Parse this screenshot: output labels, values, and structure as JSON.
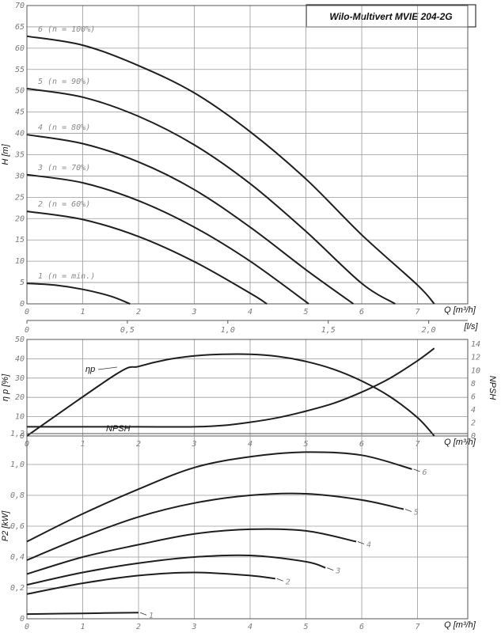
{
  "title": "Wilo-Multivert MVIE 204-2G",
  "chart_data": [
    {
      "type": "line",
      "panel": "head",
      "xlabel": "Q [m³/h]",
      "ylabel": "H [m]",
      "xlim": [
        0,
        7.9
      ],
      "ylim": [
        0,
        70
      ],
      "x_ticks": [
        "0",
        "1",
        "2",
        "3",
        "4",
        "5",
        "6",
        "7"
      ],
      "y_ticks": [
        "0",
        "5",
        "10",
        "15",
        "20",
        "25",
        "30",
        "35",
        "40",
        "45",
        "50",
        "55",
        "60",
        "65",
        "70"
      ],
      "secondary_xlabel": "[l/s]",
      "secondary_x_ticks": [
        {
          "label": "0",
          "q": 0
        },
        {
          "label": "0,5",
          "q": 1.8
        },
        {
          "label": "1,0",
          "q": 3.6
        },
        {
          "label": "1,5",
          "q": 5.4
        },
        {
          "label": "2,0",
          "q": 7.2
        }
      ],
      "series": [
        {
          "name": "6 (n = 100%)",
          "x": [
            0,
            1,
            2,
            3,
            4,
            5,
            6,
            7,
            7.3
          ],
          "y": [
            62.8,
            60.7,
            55.9,
            49.5,
            40.4,
            29.3,
            16.2,
            4.4,
            0
          ]
        },
        {
          "name": "5 (n = 90%)",
          "x": [
            0,
            1,
            2,
            3,
            4,
            5,
            6,
            6.6
          ],
          "y": [
            50.5,
            48.5,
            44.0,
            37.3,
            28.2,
            17.0,
            4.8,
            0
          ]
        },
        {
          "name": "4 (n = 80%)",
          "x": [
            0,
            1,
            2,
            3,
            4,
            5,
            5.85
          ],
          "y": [
            39.7,
            37.6,
            33.3,
            26.8,
            18.0,
            8.0,
            0
          ]
        },
        {
          "name": "3 (n = 70%)",
          "x": [
            0,
            1,
            2,
            3,
            4,
            5.05
          ],
          "y": [
            30.3,
            28.4,
            24.2,
            18.0,
            10.0,
            0
          ]
        },
        {
          "name": "2 (n = 60%)",
          "x": [
            0,
            1,
            2,
            3,
            4,
            4.3
          ],
          "y": [
            21.7,
            19.8,
            15.8,
            9.9,
            2.5,
            0
          ]
        },
        {
          "name": "1 (n = min.)",
          "x": [
            0,
            0.5,
            1,
            1.5,
            1.85
          ],
          "y": [
            4.8,
            4.4,
            3.4,
            1.8,
            0
          ]
        }
      ]
    },
    {
      "type": "line",
      "panel": "efficiency_npsh",
      "xlabel": "Q [m³/h]",
      "ylabel": "η p [%]",
      "ylabel_right": "NPSH",
      "xlim": [
        0,
        7.9
      ],
      "ylim": [
        0,
        50
      ],
      "ylim_right": [
        0,
        14.75
      ],
      "y_ticks": [
        "0",
        "10",
        "20",
        "30",
        "40",
        "50"
      ],
      "y_ticks_right": [
        "0",
        "2",
        "4",
        "6",
        "8",
        "10",
        "12",
        "14"
      ],
      "series": [
        {
          "name": "ηp",
          "axis": "left",
          "x": [
            0,
            1.6,
            2,
            2.5,
            3,
            3.5,
            4,
            4.5,
            5,
            5.5,
            6,
            6.5,
            7,
            7.3
          ],
          "y": [
            0,
            32,
            36,
            39.5,
            41.5,
            42.3,
            42.3,
            41.2,
            38.6,
            34.5,
            28.5,
            20.5,
            9.5,
            0
          ]
        },
        {
          "name": "NPSH",
          "axis": "right",
          "x": [
            0,
            1,
            2,
            3,
            3.5,
            4,
            4.5,
            5,
            5.5,
            6,
            6.5,
            7,
            7.3
          ],
          "y": [
            1.4,
            1.4,
            1.4,
            1.4,
            1.6,
            2.1,
            2.8,
            3.8,
            5.0,
            6.7,
            8.8,
            11.5,
            13.4
          ]
        }
      ]
    },
    {
      "type": "line",
      "panel": "power",
      "xlabel": "Q [m³/h]",
      "ylabel": "P2 [kW]",
      "xlim": [
        0,
        7.9
      ],
      "ylim": [
        0,
        1.2
      ],
      "y_ticks": [
        "0",
        "0,2",
        "0,4",
        "0,6",
        "0,8",
        "1,0",
        "1,2"
      ],
      "series": [
        {
          "name": "6",
          "x": [
            0,
            1,
            2,
            3,
            4,
            5,
            6,
            6.9
          ],
          "y": [
            0.5,
            0.68,
            0.84,
            0.98,
            1.05,
            1.08,
            1.06,
            0.97
          ]
        },
        {
          "name": "5",
          "x": [
            0,
            1,
            2,
            3,
            4,
            5,
            6,
            6.75
          ],
          "y": [
            0.38,
            0.53,
            0.66,
            0.75,
            0.8,
            0.81,
            0.77,
            0.71
          ]
        },
        {
          "name": "4",
          "x": [
            0,
            1,
            2,
            3,
            4,
            5,
            5.9
          ],
          "y": [
            0.29,
            0.4,
            0.48,
            0.55,
            0.58,
            0.57,
            0.5
          ]
        },
        {
          "name": "3",
          "x": [
            0,
            1,
            2,
            3,
            4,
            5,
            5.35
          ],
          "y": [
            0.22,
            0.3,
            0.36,
            0.4,
            0.41,
            0.37,
            0.33
          ]
        },
        {
          "name": "2",
          "x": [
            0,
            1,
            2,
            3,
            4,
            4.45
          ],
          "y": [
            0.16,
            0.23,
            0.28,
            0.3,
            0.28,
            0.26
          ]
        },
        {
          "name": "1",
          "x": [
            0,
            1,
            2
          ],
          "y": [
            0.03,
            0.035,
            0.04
          ]
        }
      ]
    }
  ]
}
